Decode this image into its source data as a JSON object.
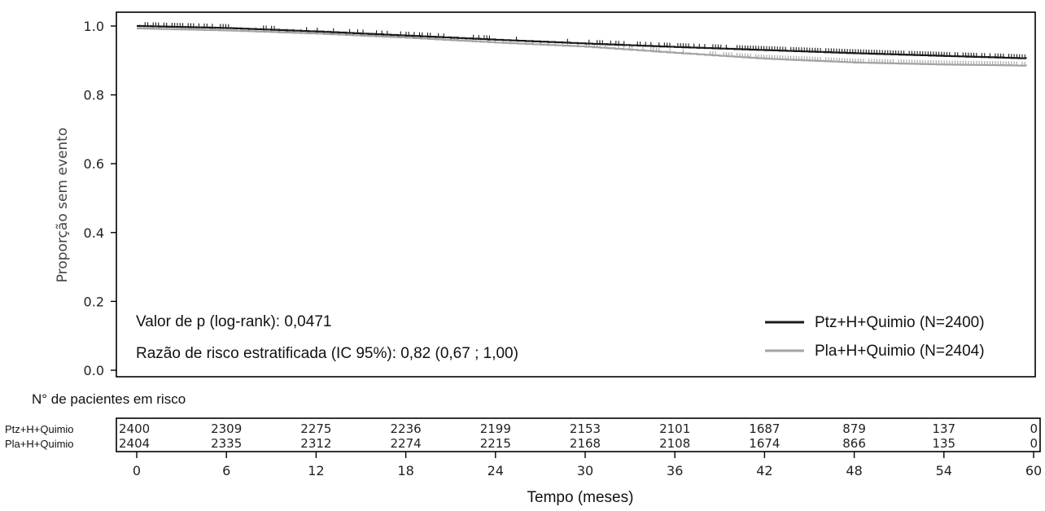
{
  "chart_data": {
    "type": "line",
    "chart_kind": "kaplan-meier",
    "ylabel": "Proporção sem evento",
    "xlabel": "Tempo (meses)",
    "xlim": [
      0,
      60
    ],
    "ylim": [
      0.0,
      1.0
    ],
    "x_ticks": [
      0,
      6,
      12,
      18,
      24,
      30,
      36,
      42,
      48,
      54,
      60
    ],
    "y_ticks": [
      "0.0",
      "0.2",
      "0.4",
      "0.6",
      "0.8",
      "1.0"
    ],
    "y_tick_values": [
      0.0,
      0.2,
      0.4,
      0.6,
      0.8,
      1.0
    ],
    "annotations": {
      "pvalue": "Valor de p (log-rank): 0,0471",
      "hazard_ratio": "Razão de risco estratificada (IC 95%): 0,82 (0,67 ; 1,00)"
    },
    "legend_position": "bottom-right",
    "series": [
      {
        "name": "Ptz+H+Quimio (N=2400)",
        "color": "#1a1a1a",
        "x": [
          0,
          6,
          12,
          18,
          24,
          30,
          36,
          42,
          48,
          54,
          58,
          60
        ],
        "y": [
          1.0,
          0.994,
          0.984,
          0.972,
          0.96,
          0.949,
          0.939,
          0.93,
          0.921,
          0.913,
          0.908,
          0.905
        ]
      },
      {
        "name": "Pla+H+Quimio (N=2404)",
        "color": "#a3a3a3",
        "x": [
          0,
          6,
          12,
          18,
          24,
          30,
          36,
          42,
          48,
          54,
          58,
          60
        ],
        "y": [
          0.993,
          0.987,
          0.978,
          0.966,
          0.952,
          0.94,
          0.922,
          0.905,
          0.894,
          0.888,
          0.886,
          0.884
        ]
      }
    ],
    "risk_table": {
      "title": "N° de pacientes em risco",
      "rows": [
        {
          "label": "Ptz+H+Quimio",
          "values": [
            "2400",
            "2309",
            "2275",
            "2236",
            "2199",
            "2153",
            "2101",
            "1687",
            "879",
            "137",
            "0"
          ]
        },
        {
          "label": "Pla+H+Quimio",
          "values": [
            "2404",
            "2335",
            "2312",
            "2274",
            "2215",
            "2168",
            "2108",
            "1674",
            "866",
            "135",
            "0"
          ]
        }
      ]
    }
  }
}
